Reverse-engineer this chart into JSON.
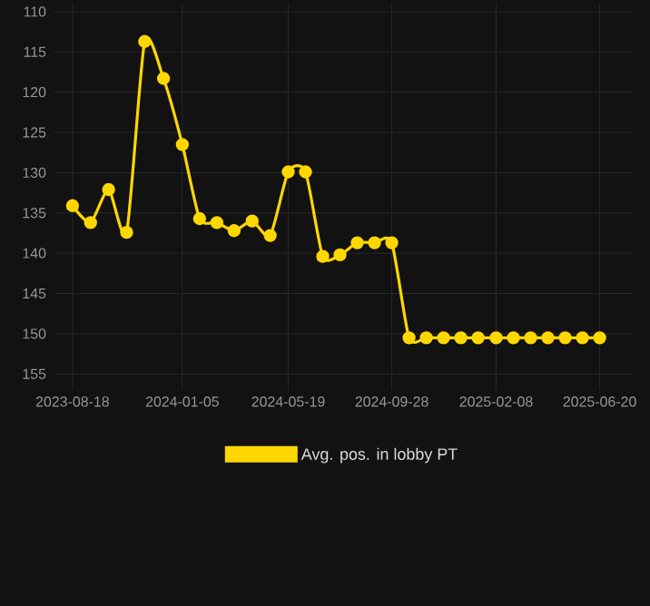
{
  "chart_data": {
    "type": "line",
    "marker": "circle",
    "grid": true,
    "legend": "bottom",
    "x": [
      "2023-08-18",
      "2023-09-10",
      "2023-10-03",
      "2023-10-26",
      "2023-11-18",
      "2023-12-12",
      "2024-01-05",
      "2024-01-27",
      "2024-02-18",
      "2024-03-11",
      "2024-04-03",
      "2024-04-26",
      "2024-05-19",
      "2024-06-10",
      "2024-07-02",
      "2024-07-24",
      "2024-08-15",
      "2024-09-06",
      "2024-09-28",
      "2024-10-20",
      "2024-11-11",
      "2024-12-03",
      "2024-12-25",
      "2025-01-16",
      "2025-02-08",
      "2025-03-02",
      "2025-03-24",
      "2025-04-15",
      "2025-05-07",
      "2025-05-29",
      "2025-06-20"
    ],
    "series": [
      {
        "name": "Avg. pos. in lobby PT",
        "color": "#ffd700",
        "values": [
          134.1,
          136.2,
          132.1,
          137.4,
          113.7,
          118.3,
          126.5,
          135.7,
          136.2,
          137.2,
          136.0,
          137.8,
          129.9,
          129.9,
          140.4,
          140.2,
          138.7,
          138.7,
          138.7,
          150.5,
          150.5,
          150.5,
          150.5,
          150.5,
          150.5,
          150.5,
          150.5,
          150.5,
          150.5,
          150.5,
          150.5
        ]
      }
    ],
    "xlim": [
      "2023-07-26",
      "2025-07-31"
    ],
    "xticks": [
      "2023-08-18",
      "2024-01-05",
      "2024-05-19",
      "2024-09-28",
      "2025-02-08",
      "2025-06-20"
    ],
    "ylim": [
      157,
      109
    ],
    "yticks": [
      110,
      115,
      120,
      125,
      130,
      135,
      140,
      145,
      150,
      155
    ]
  }
}
